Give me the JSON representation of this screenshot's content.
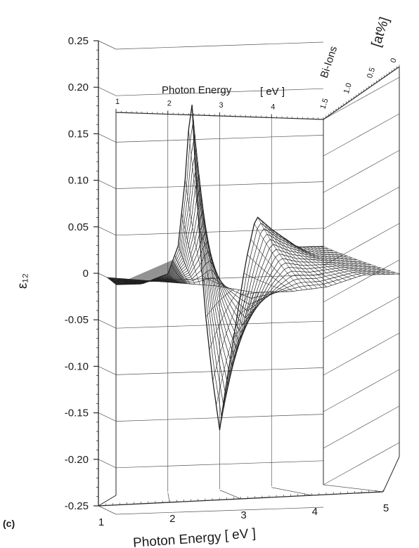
{
  "panel_label": "(c)",
  "chart_data": {
    "type": "surface",
    "z_label": "ε₁₂",
    "x_label": "Photon Energy",
    "x_unit": "[ eV ]",
    "x_range": [
      1,
      5
    ],
    "x_ticks": [
      "1",
      "2",
      "3",
      "4",
      "5"
    ],
    "top_x_label": "Photon Energy",
    "top_x_unit": "[ eV ]",
    "top_x_ticks": [
      "1",
      "2",
      "3",
      "4"
    ],
    "depth_label": "Bi-Ions",
    "depth_unit": "[at%]",
    "depth_ticks": [
      "1.5",
      "1.0",
      "0.5",
      "0"
    ],
    "depth_range": [
      0,
      1.5
    ],
    "z_range": [
      -0.25,
      0.25
    ],
    "z_ticks": [
      "0.25",
      "0.20",
      "0.15",
      "0.10",
      "0.05",
      "0",
      "-0.05",
      "-0.10",
      "-0.15",
      "-0.20",
      "-0.25"
    ],
    "grid": true,
    "series": [
      {
        "bi_at_percent": 1.5,
        "x": [
          1.0,
          1.5,
          2.0,
          2.2,
          2.35,
          2.45,
          2.55,
          2.7,
          2.85,
          3.0,
          3.1,
          3.3,
          3.5,
          3.7,
          4.0,
          4.5,
          5.0
        ],
        "y": [
          0.0,
          0.0,
          0.01,
          0.04,
          0.12,
          0.21,
          0.1,
          -0.02,
          -0.1,
          -0.16,
          -0.12,
          -0.05,
          0.02,
          0.07,
          0.055,
          0.035,
          0.035
        ]
      },
      {
        "bi_at_percent": 0,
        "x": [
          1.0,
          2.0,
          2.5,
          3.0,
          3.5,
          4.0,
          4.5,
          5.0
        ],
        "y": [
          0.0,
          0.0,
          0.0,
          -0.005,
          0.0,
          0.01,
          0.03,
          0.035
        ]
      }
    ]
  }
}
